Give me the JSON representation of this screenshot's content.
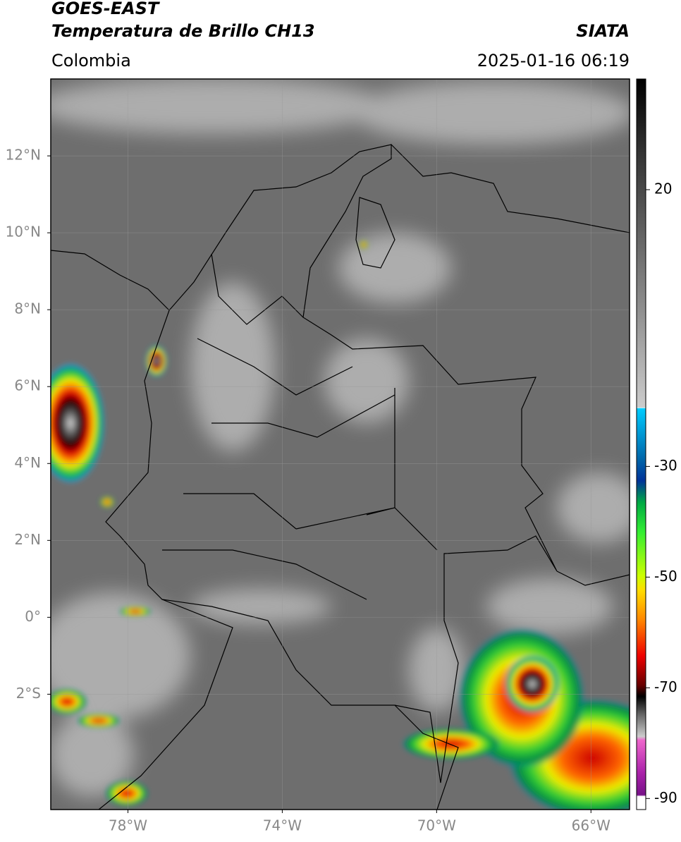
{
  "header": {
    "title": "GOES-EAST",
    "subtitle": "Temperatura de Brillo CH13",
    "source": "SIATA",
    "region": "Colombia",
    "datetime": "2025-01-16 06:19"
  },
  "map": {
    "xlim": [
      -80,
      -65
    ],
    "ylim": [
      -5,
      14
    ],
    "grid": true,
    "xticks": [
      {
        "value": -78,
        "label": "78°W"
      },
      {
        "value": -74,
        "label": "74°W"
      },
      {
        "value": -70,
        "label": "70°W"
      },
      {
        "value": -66,
        "label": "66°W"
      }
    ],
    "yticks": [
      {
        "value": 12,
        "label": "12°N"
      },
      {
        "value": 10,
        "label": "10°N"
      },
      {
        "value": 8,
        "label": "8°N"
      },
      {
        "value": 6,
        "label": "6°N"
      },
      {
        "value": 4,
        "label": "4°N"
      },
      {
        "value": 2,
        "label": "2°N"
      },
      {
        "value": 0,
        "label": "0°"
      },
      {
        "value": -2,
        "label": "2°S"
      }
    ]
  },
  "colorbar": {
    "lim": [
      -92,
      40
    ],
    "ticks": [
      20,
      -30,
      -50,
      -70,
      -90
    ]
  }
}
